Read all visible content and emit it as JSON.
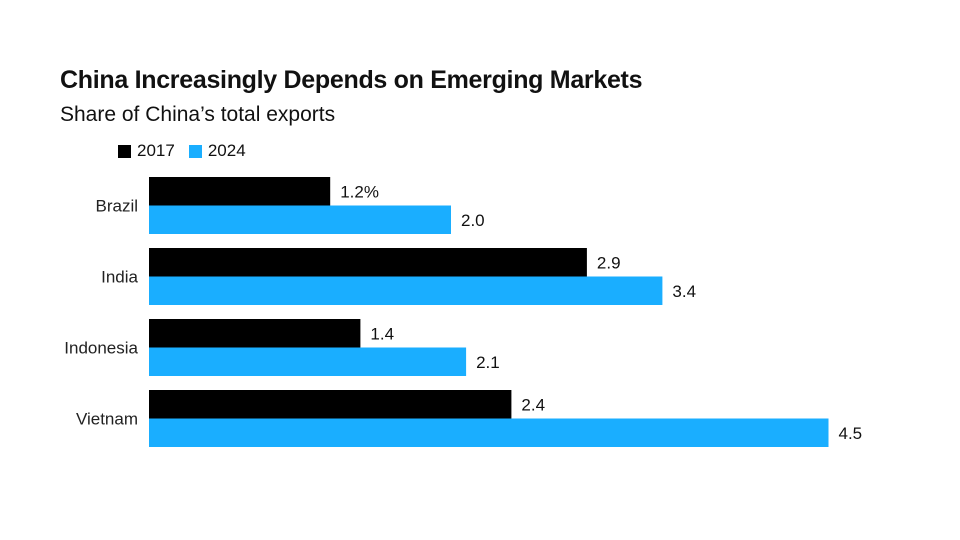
{
  "title": "China Increasingly Depends on Emerging Markets",
  "subtitle": "Share of China’s total exports",
  "colors": {
    "series_2017": "#000000",
    "series_2024": "#1AAEFF"
  },
  "chart_data": {
    "type": "bar",
    "orientation": "horizontal",
    "title": "China Increasingly Depends on Emerging Markets",
    "subtitle": "Share of China’s total exports",
    "categories": [
      "Brazil",
      "India",
      "Indonesia",
      "Vietnam"
    ],
    "series": [
      {
        "name": "2017",
        "color": "#000000",
        "values": [
          1.2,
          2.9,
          1.4,
          2.4
        ],
        "labels": [
          "1.2%",
          "2.9",
          "1.4",
          "2.4"
        ]
      },
      {
        "name": "2024",
        "color": "#1AAEFF",
        "values": [
          2.0,
          3.4,
          2.1,
          4.5
        ],
        "labels": [
          "2.0",
          "3.4",
          "2.1",
          "4.5"
        ]
      }
    ],
    "unit": "%",
    "xlim": [
      0,
      4.5
    ],
    "legend": "top-left",
    "grid": false
  }
}
